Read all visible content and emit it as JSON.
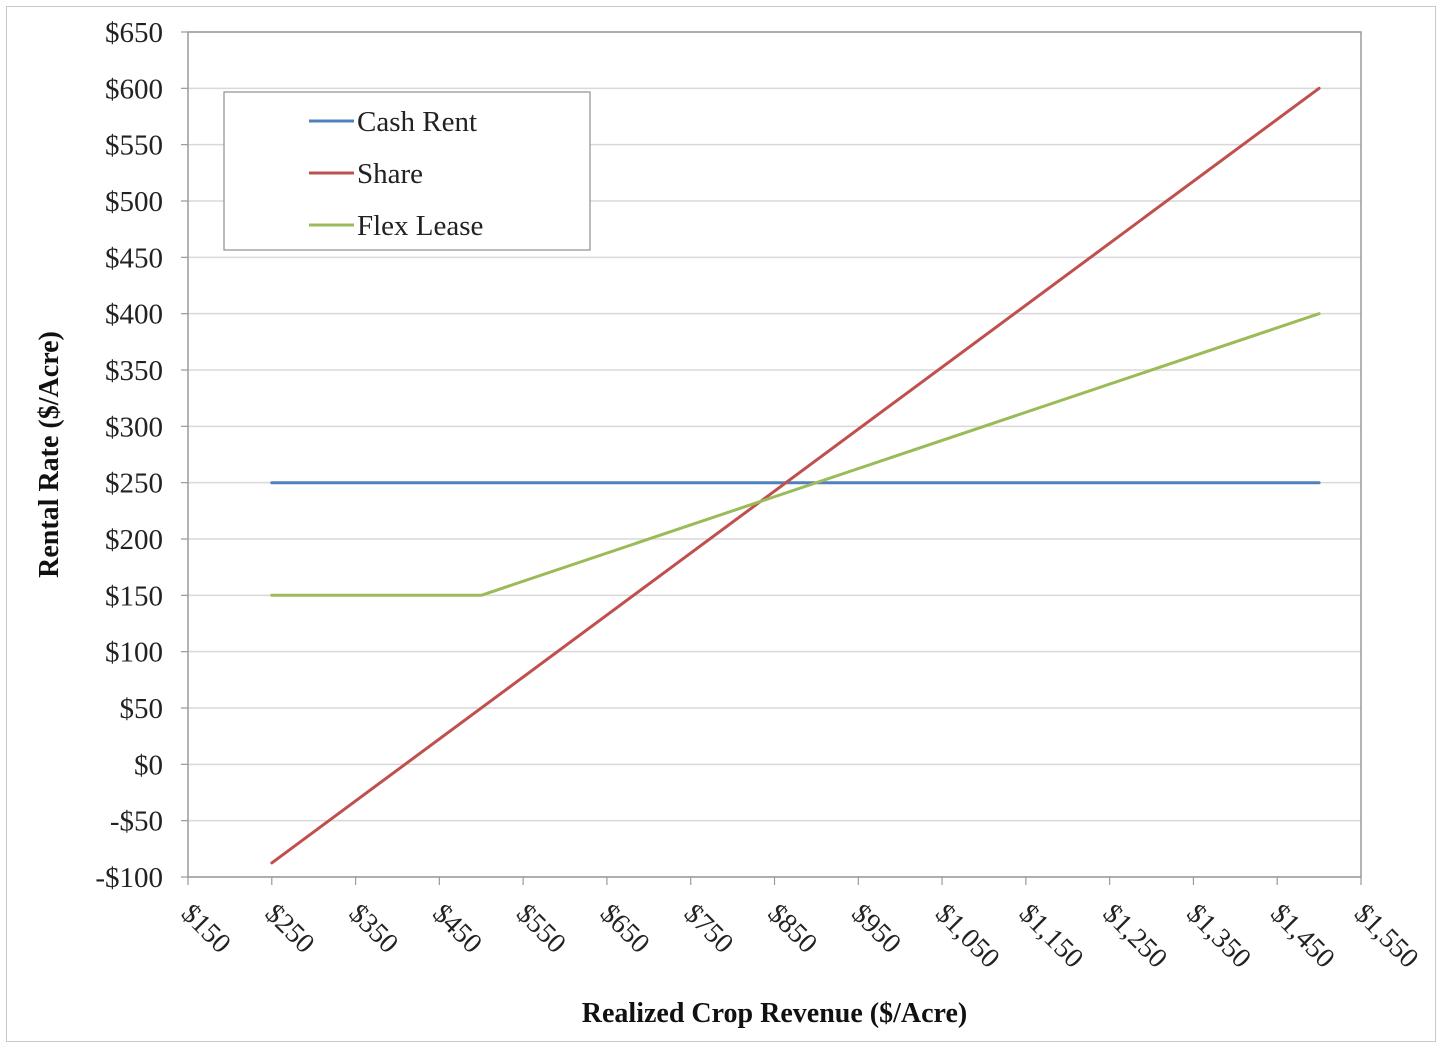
{
  "chart_data": {
    "type": "line",
    "title": "",
    "xlabel": "Realized Crop Revenue ($/Acre)",
    "ylabel": "Rental Rate ($/Acre)",
    "xlim": [
      150,
      1550
    ],
    "ylim": [
      -100,
      650
    ],
    "x_ticks": [
      150,
      250,
      350,
      450,
      550,
      650,
      750,
      850,
      950,
      1050,
      1150,
      1250,
      1350,
      1450,
      1550
    ],
    "x_tick_labels": [
      "$150",
      "$250",
      "$350",
      "$450",
      "$550",
      "$650",
      "$750",
      "$850",
      "$950",
      "$1,050",
      "$1,150",
      "$1,250",
      "$1,350",
      "$1,450",
      "$1,550"
    ],
    "y_ticks": [
      -100,
      -50,
      0,
      50,
      100,
      150,
      200,
      250,
      300,
      350,
      400,
      450,
      500,
      550,
      600,
      650
    ],
    "y_tick_labels": [
      "-$100",
      "-$50",
      "$0",
      "$50",
      "$100",
      "$150",
      "$200",
      "$250",
      "$300",
      "$350",
      "$400",
      "$450",
      "$500",
      "$550",
      "$600",
      "$650"
    ],
    "grid": true,
    "legend_position": "top-left",
    "series": [
      {
        "name": "Cash Rent",
        "color": "#4f81bd",
        "points": [
          [
            250,
            250
          ],
          [
            1500,
            250
          ]
        ]
      },
      {
        "name": "Share",
        "color": "#c0504d",
        "points": [
          [
            250,
            -87.5
          ],
          [
            1500,
            600
          ]
        ]
      },
      {
        "name": "Flex Lease",
        "color": "#9bbb59",
        "points": [
          [
            250,
            150
          ],
          [
            500,
            150
          ],
          [
            1500,
            400
          ]
        ]
      }
    ]
  }
}
